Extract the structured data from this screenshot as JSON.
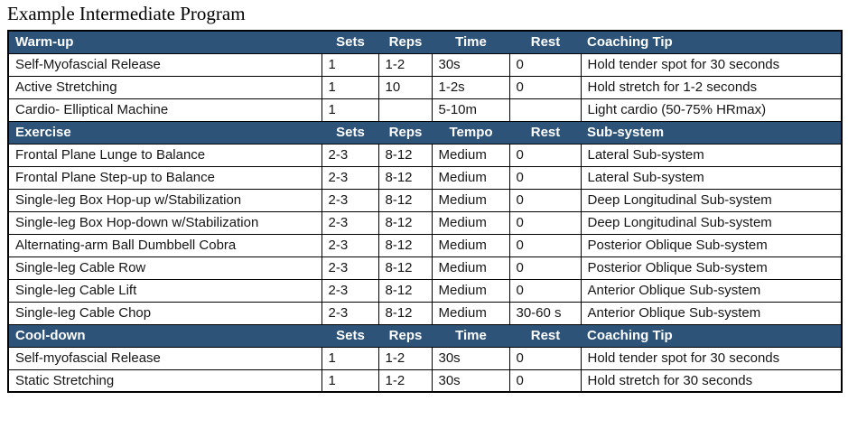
{
  "page": {
    "title": "Example Intermediate Program"
  },
  "colors": {
    "header_bg": "#2d5379",
    "header_text": "#ffffff",
    "border": "#000000",
    "row_bg": "#ffffff",
    "text": "#161616"
  },
  "table": {
    "sections": [
      {
        "label": "Warm-up",
        "columns": [
          "Sets",
          "Reps",
          "Time",
          "Rest",
          "Coaching Tip"
        ],
        "rows": [
          [
            "Self-Myofascial Release",
            "1",
            "1-2",
            "30s",
            "0",
            "Hold tender spot for 30 seconds"
          ],
          [
            "Active Stretching",
            "1",
            "10",
            "1-2s",
            "0",
            "Hold stretch for 1-2 seconds"
          ],
          [
            "Cardio- Elliptical Machine",
            "1",
            "",
            "5-10m",
            "",
            "Light cardio (50-75% HRmax)"
          ]
        ]
      },
      {
        "label": "Exercise",
        "columns": [
          "Sets",
          "Reps",
          "Tempo",
          "Rest",
          "Sub-system"
        ],
        "rows": [
          [
            "Frontal Plane Lunge to Balance",
            "2-3",
            "8-12",
            "Medium",
            "0",
            "Lateral Sub-system"
          ],
          [
            "Frontal Plane Step-up to Balance",
            "2-3",
            "8-12",
            "Medium",
            "0",
            "Lateral Sub-system"
          ],
          [
            "Single-leg Box Hop-up w/Stabilization",
            "2-3",
            "8-12",
            "Medium",
            "0",
            "Deep Longitudinal Sub-system"
          ],
          [
            "Single-leg Box Hop-down w/Stabilization",
            "2-3",
            "8-12",
            "Medium",
            "0",
            "Deep Longitudinal Sub-system"
          ],
          [
            "Alternating-arm Ball Dumbbell Cobra",
            "2-3",
            "8-12",
            "Medium",
            "0",
            "Posterior Oblique Sub-system"
          ],
          [
            "Single-leg Cable Row",
            "2-3",
            "8-12",
            "Medium",
            "0",
            "Posterior Oblique Sub-system"
          ],
          [
            "Single-leg Cable Lift",
            "2-3",
            "8-12",
            "Medium",
            "0",
            "Anterior Oblique Sub-system"
          ],
          [
            "Single-leg Cable Chop",
            "2-3",
            "8-12",
            "Medium",
            "30-60 s",
            "Anterior Oblique Sub-system"
          ]
        ]
      },
      {
        "label": "Cool-down",
        "columns": [
          "Sets",
          "Reps",
          "Time",
          "Rest",
          "Coaching Tip"
        ],
        "rows": [
          [
            "Self-myofascial Release",
            "1",
            "1-2",
            "30s",
            "0",
            "Hold tender spot for 30 seconds"
          ],
          [
            "Static Stretching",
            "1",
            "1-2",
            "30s",
            "0",
            "Hold stretch for 30 seconds"
          ]
        ]
      }
    ]
  }
}
